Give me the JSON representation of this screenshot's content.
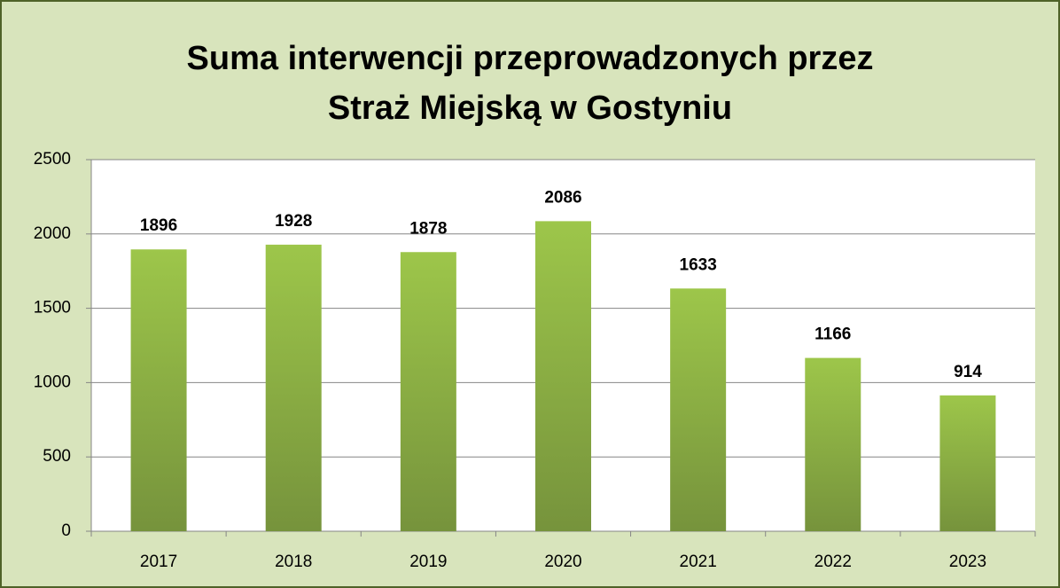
{
  "chart_data": {
    "type": "bar",
    "title": [
      "Suma interwencji przeprowadzonych przez",
      "Straż Miejską w Gostyniu"
    ],
    "categories": [
      "2017",
      "2018",
      "2019",
      "2020",
      "2021",
      "2022",
      "2023"
    ],
    "values": [
      1896,
      1928,
      1878,
      2086,
      1633,
      1166,
      914
    ],
    "color": "#9bbb59",
    "ylim": [
      0,
      2500
    ],
    "yticks": [
      0,
      500,
      1000,
      1500,
      2000,
      2500
    ],
    "grid": true
  }
}
